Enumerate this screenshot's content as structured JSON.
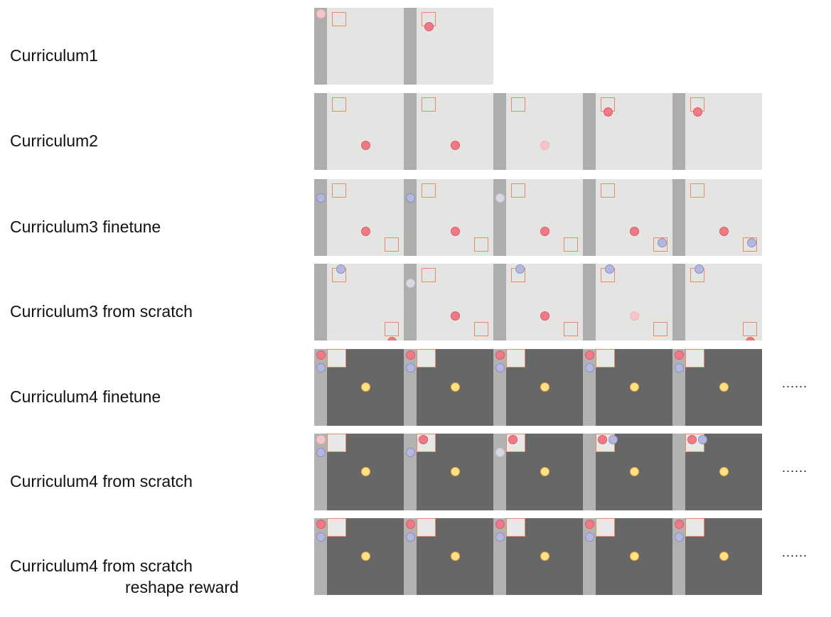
{
  "colors": {
    "light_bg": "#e4e4e3",
    "dark_bg": "#666766",
    "wall_light": "#adadac",
    "wall_dark": "#b2b2b1",
    "box_outline": "#e88a63",
    "red_agent": "#ef7a86",
    "red_agent_faded": "#f6c5cb",
    "blue_agent": "#b5b8dd",
    "blue_agent_faded": "#d7d8e3",
    "goal": "#fde385",
    "goal_outline": "#f2a33a"
  },
  "rows": [
    {
      "label": "Curriculum1",
      "theme": "light",
      "ellipsis": "",
      "frames": [
        {
          "boxes": [
            [
              "tl",
              0
            ]
          ],
          "dots": [
            [
              "r_wall",
              "red_faded"
            ]
          ]
        },
        {
          "boxes": [
            [
              "tl",
              0
            ]
          ],
          "dots": [
            [
              "r_box_low",
              "red"
            ]
          ]
        }
      ]
    },
    {
      "label": "Curriculum2",
      "theme": "light",
      "ellipsis": "",
      "frames": [
        {
          "boxes": [
            [
              "tl",
              0
            ]
          ],
          "dots": [
            [
              "center",
              "red"
            ]
          ]
        },
        {
          "boxes": [
            [
              "tl",
              0
            ]
          ],
          "dots": [
            [
              "center",
              "red"
            ]
          ]
        },
        {
          "boxes": [
            [
              "tl",
              0
            ]
          ],
          "dots": [
            [
              "center",
              "red_faded"
            ]
          ]
        },
        {
          "boxes": [
            [
              "tl",
              0
            ]
          ],
          "dots": [
            [
              "r_box_low",
              "red"
            ]
          ]
        },
        {
          "boxes": [
            [
              "tl",
              0
            ]
          ],
          "dots": [
            [
              "r_box_low",
              "red"
            ]
          ]
        }
      ]
    },
    {
      "label": "Curriculum3 finetune",
      "theme": "light",
      "ellipsis": "",
      "frames": [
        {
          "boxes": [
            [
              "tl",
              0
            ],
            [
              "br",
              0
            ]
          ],
          "dots": [
            [
              "b_wall",
              "blue"
            ],
            [
              "center",
              "red"
            ]
          ]
        },
        {
          "boxes": [
            [
              "tl",
              0
            ],
            [
              "br",
              0
            ]
          ],
          "dots": [
            [
              "b_wall",
              "blue"
            ],
            [
              "center",
              "red"
            ]
          ]
        },
        {
          "boxes": [
            [
              "tl",
              0
            ],
            [
              "br",
              0
            ]
          ],
          "dots": [
            [
              "b_wall",
              "blue_faded"
            ],
            [
              "center",
              "red"
            ]
          ]
        },
        {
          "boxes": [
            [
              "tl",
              0
            ],
            [
              "br",
              0
            ]
          ],
          "dots": [
            [
              "center",
              "red"
            ],
            [
              "b_br",
              "blue"
            ]
          ]
        },
        {
          "boxes": [
            [
              "tl",
              0
            ],
            [
              "br",
              0
            ]
          ],
          "dots": [
            [
              "center",
              "red"
            ],
            [
              "b_br",
              "blue"
            ]
          ]
        }
      ]
    },
    {
      "label": "Curriculum3 from scratch",
      "theme": "light",
      "ellipsis": "",
      "frames": [
        {
          "boxes": [
            [
              "tl",
              0
            ],
            [
              "br",
              0
            ]
          ],
          "dots": [
            [
              "b_top",
              "blue"
            ],
            [
              "r_br_low",
              "red"
            ]
          ]
        },
        {
          "boxes": [
            [
              "tl",
              0
            ],
            [
              "br",
              0
            ]
          ],
          "dots": [
            [
              "b_wall_mid",
              "blue_faded"
            ],
            [
              "center",
              "red"
            ]
          ]
        },
        {
          "boxes": [
            [
              "tl",
              0
            ],
            [
              "br",
              0
            ]
          ],
          "dots": [
            [
              "b_top",
              "blue"
            ],
            [
              "center",
              "red"
            ]
          ]
        },
        {
          "boxes": [
            [
              "tl",
              0
            ],
            [
              "br",
              0
            ]
          ],
          "dots": [
            [
              "b_top",
              "blue"
            ],
            [
              "center",
              "red_faded"
            ]
          ]
        },
        {
          "boxes": [
            [
              "tl",
              0
            ],
            [
              "br",
              0
            ]
          ],
          "dots": [
            [
              "b_top",
              "blue"
            ],
            [
              "r_br_low",
              "red"
            ]
          ]
        }
      ]
    },
    {
      "label": "Curriculum4 finetune",
      "theme": "dark",
      "ellipsis": "......",
      "frames": [
        {
          "boxes": [
            [
              "tl_big",
              1
            ]
          ],
          "dots": [
            [
              "r_wall",
              "red"
            ],
            [
              "b_wall_low",
              "blue"
            ],
            [
              "goal",
              "goal"
            ]
          ]
        },
        {
          "boxes": [
            [
              "tl_big",
              1
            ]
          ],
          "dots": [
            [
              "r_wall",
              "red"
            ],
            [
              "b_wall_low",
              "blue"
            ],
            [
              "goal",
              "goal"
            ]
          ]
        },
        {
          "boxes": [
            [
              "tl_big",
              1
            ]
          ],
          "dots": [
            [
              "r_wall",
              "red"
            ],
            [
              "b_wall_low",
              "blue"
            ],
            [
              "goal",
              "goal"
            ]
          ]
        },
        {
          "boxes": [
            [
              "tl_big",
              1
            ]
          ],
          "dots": [
            [
              "r_wall",
              "red"
            ],
            [
              "b_wall_low",
              "blue"
            ],
            [
              "goal",
              "goal"
            ]
          ]
        },
        {
          "boxes": [
            [
              "tl_big",
              1
            ]
          ],
          "dots": [
            [
              "r_wall",
              "red"
            ],
            [
              "b_wall_low",
              "blue"
            ],
            [
              "goal",
              "goal"
            ]
          ]
        }
      ]
    },
    {
      "label": "Curriculum4 from scratch",
      "theme": "dark",
      "ellipsis": "......",
      "frames": [
        {
          "boxes": [
            [
              "tl_big",
              1
            ]
          ],
          "dots": [
            [
              "r_wall",
              "red_faded"
            ],
            [
              "b_wall_low",
              "blue"
            ],
            [
              "goal",
              "goal"
            ]
          ]
        },
        {
          "boxes": [
            [
              "tl_big",
              1
            ]
          ],
          "dots": [
            [
              "r_in_box",
              "red"
            ],
            [
              "b_wall_low",
              "blue"
            ],
            [
              "goal",
              "goal"
            ]
          ]
        },
        {
          "boxes": [
            [
              "tl_big",
              1
            ]
          ],
          "dots": [
            [
              "r_in_box",
              "red"
            ],
            [
              "b_wall_low",
              "blue_faded"
            ],
            [
              "goal",
              "goal"
            ]
          ]
        },
        {
          "boxes": [
            [
              "tl_big",
              1
            ]
          ],
          "dots": [
            [
              "r_in_box",
              "red"
            ],
            [
              "b_box_edge",
              "blue"
            ],
            [
              "goal",
              "goal"
            ]
          ]
        },
        {
          "boxes": [
            [
              "tl_big",
              1
            ]
          ],
          "dots": [
            [
              "r_in_box",
              "red"
            ],
            [
              "b_box_edge",
              "blue"
            ],
            [
              "goal",
              "goal"
            ]
          ]
        }
      ]
    },
    {
      "label": "Curriculum4 from scratch",
      "label_line2": "reshape reward",
      "theme": "dark",
      "ellipsis": "......",
      "frames": [
        {
          "boxes": [
            [
              "tl_big",
              1
            ]
          ],
          "dots": [
            [
              "r_wall",
              "red"
            ],
            [
              "b_wall_low",
              "blue"
            ],
            [
              "goal",
              "goal"
            ]
          ]
        },
        {
          "boxes": [
            [
              "tl_big",
              1
            ]
          ],
          "dots": [
            [
              "r_wall",
              "red"
            ],
            [
              "b_wall_low",
              "blue"
            ],
            [
              "goal",
              "goal"
            ]
          ]
        },
        {
          "boxes": [
            [
              "tl_big",
              1
            ]
          ],
          "dots": [
            [
              "r_wall",
              "red"
            ],
            [
              "b_wall_low",
              "blue"
            ],
            [
              "goal",
              "goal"
            ]
          ]
        },
        {
          "boxes": [
            [
              "tl_big",
              1
            ]
          ],
          "dots": [
            [
              "r_wall",
              "red"
            ],
            [
              "b_wall_low",
              "blue"
            ],
            [
              "goal",
              "goal"
            ]
          ]
        },
        {
          "boxes": [
            [
              "tl_big",
              1
            ]
          ],
          "dots": [
            [
              "r_wall",
              "red"
            ],
            [
              "b_wall_low",
              "blue"
            ],
            [
              "goal",
              "goal"
            ]
          ]
        }
      ]
    }
  ]
}
